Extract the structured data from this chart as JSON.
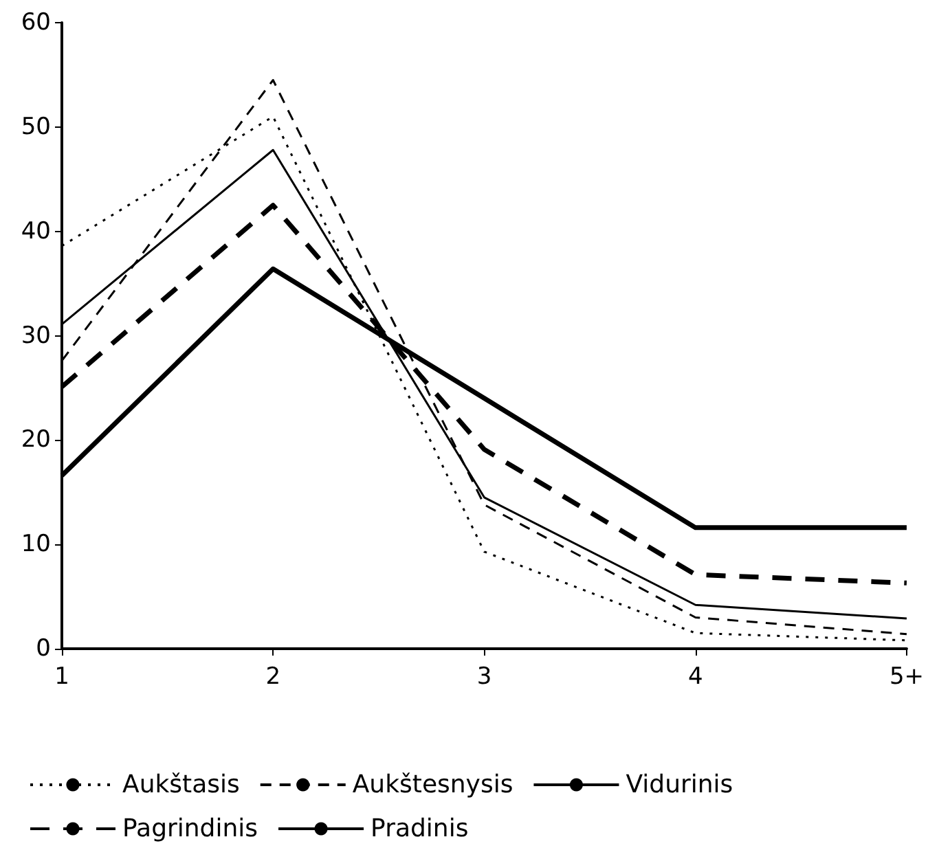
{
  "chart_data": {
    "type": "line",
    "categories": [
      "1",
      "2",
      "3",
      "4",
      "5+"
    ],
    "series": [
      {
        "name": "Aukštasis",
        "color": "#000000",
        "line_style": "dotted",
        "values": [
          38.6,
          51,
          9.3,
          1.5,
          0.8
        ]
      },
      {
        "name": "Aukštesnysis",
        "color": "#000000",
        "line_style": "dashed",
        "values": [
          27.6,
          54.5,
          13.8,
          3,
          1.4
        ]
      },
      {
        "name": "Vidurinis",
        "color": "#000000",
        "line_style": "solid",
        "values": [
          31.1,
          47.8,
          14.5,
          4.2,
          2.9
        ]
      },
      {
        "name": "Pagrindinis",
        "color": "#000000",
        "line_style": "dashed",
        "values": [
          25.1,
          42.5,
          19.1,
          7.1,
          6.3
        ]
      },
      {
        "name": "Pradinis",
        "color": "#000000",
        "line_style": "solid",
        "values": [
          16.6,
          36.4,
          24,
          11.6,
          11.6
        ]
      }
    ],
    "ylim": [
      0,
      60
    ],
    "yticks": [
      0,
      10,
      20,
      30,
      40,
      50,
      60
    ],
    "grid": false,
    "legend": "bottom",
    "marker": "none"
  }
}
